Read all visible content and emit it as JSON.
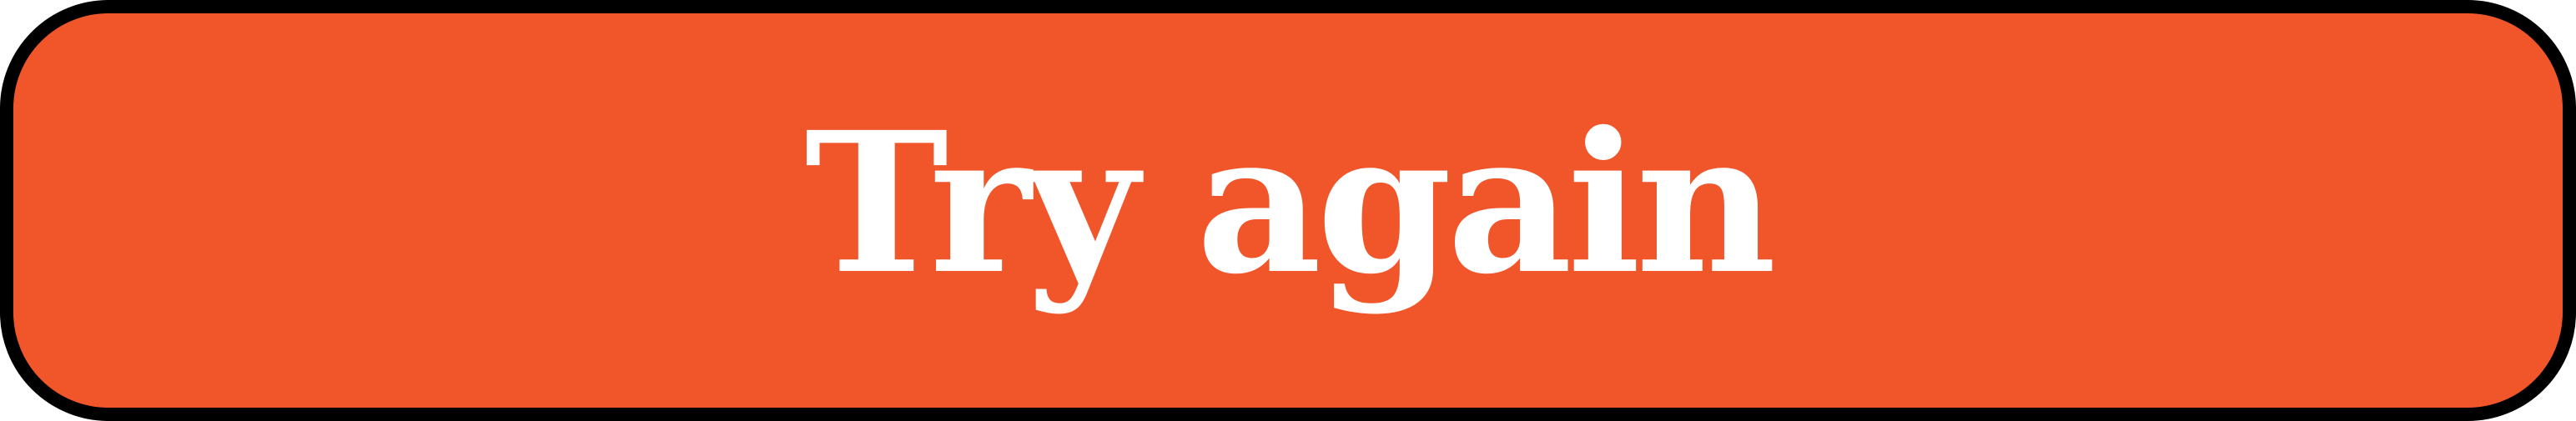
{
  "button": {
    "label": "Try again",
    "background_color": "#F0562A",
    "border_color": "#000000",
    "text_color": "#FFFFFF"
  }
}
